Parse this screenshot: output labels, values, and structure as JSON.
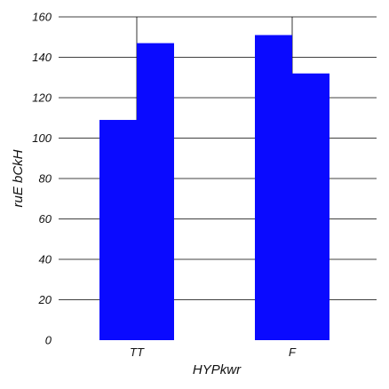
{
  "chart_data": {
    "type": "bar",
    "title": "",
    "xlabel": "HYPkwr",
    "ylabel": "ruE bCkH",
    "categories": [
      "TT",
      "F"
    ],
    "series": [
      {
        "values": [
          109,
          151
        ],
        "color": "#0a0aff"
      },
      {
        "values": [
          147,
          132
        ],
        "color": "#0a0aff"
      }
    ],
    "ylim": [
      0,
      160
    ],
    "yticks": [
      0,
      20,
      40,
      60,
      80,
      100,
      120,
      140,
      160
    ],
    "grid": true,
    "legend": "none"
  }
}
